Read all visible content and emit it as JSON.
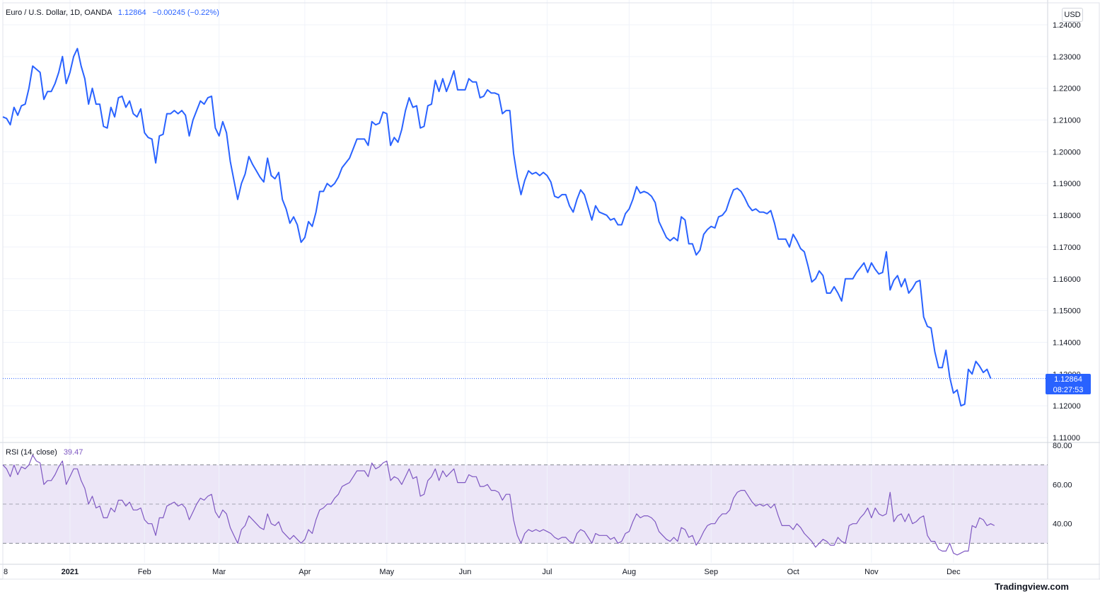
{
  "header": {
    "symbol": "Euro / U.S. Dollar, 1D, OANDA",
    "last": "1.12864",
    "change": "−0.00245 (−0.22%)"
  },
  "currency_button": "USD",
  "price_tag": {
    "price": "1.12864",
    "countdown": "08:27:53"
  },
  "rsi": {
    "label": "RSI (14, close)",
    "value": "39.47"
  },
  "footer": "Tradingview.com",
  "colors": {
    "price_line": "#2962ff",
    "rsi_line": "#7e57c2",
    "rsi_band": "#ece6f7"
  },
  "chart_data": [
    {
      "type": "line",
      "ylim": [
        1.11,
        1.24
      ],
      "y_ticks": [
        "1.24000",
        "1.23000",
        "1.22000",
        "1.21000",
        "1.20000",
        "1.19000",
        "1.18000",
        "1.17000",
        "1.16000",
        "1.15000",
        "1.14000",
        "1.13000",
        "1.12000",
        "1.11000"
      ],
      "x_ticks": [
        {
          "label": "8",
          "bar": 0
        },
        {
          "label": "2021",
          "bar": 18
        },
        {
          "label": "Feb",
          "bar": 38
        },
        {
          "label": "Mar",
          "bar": 58
        },
        {
          "label": "Apr",
          "bar": 81
        },
        {
          "label": "May",
          "bar": 103
        },
        {
          "label": "Jun",
          "bar": 124
        },
        {
          "label": "Jul",
          "bar": 146
        },
        {
          "label": "Aug",
          "bar": 168
        },
        {
          "label": "Sep",
          "bar": 190
        },
        {
          "label": "Oct",
          "bar": 212
        },
        {
          "label": "Nov",
          "bar": 233
        },
        {
          "label": "Dec",
          "bar": 255
        }
      ],
      "values": [
        1.211,
        1.2105,
        1.2085,
        1.214,
        1.2115,
        1.2145,
        1.215,
        1.22,
        1.227,
        1.226,
        1.225,
        1.2165,
        1.219,
        1.219,
        1.2215,
        1.225,
        1.23,
        1.2215,
        1.225,
        1.23,
        1.2325,
        1.227,
        1.223,
        1.215,
        1.22,
        1.215,
        1.215,
        1.208,
        1.2075,
        1.214,
        1.211,
        1.217,
        1.2175,
        1.214,
        1.216,
        1.212,
        1.211,
        1.2135,
        1.206,
        1.2045,
        1.204,
        1.1965,
        1.205,
        1.2055,
        1.212,
        1.212,
        1.213,
        1.212,
        1.213,
        1.2115,
        1.205,
        1.21,
        1.213,
        1.216,
        1.215,
        1.217,
        1.2175,
        1.2075,
        1.205,
        1.2095,
        1.206,
        1.197,
        1.191,
        1.185,
        1.19,
        1.193,
        1.1985,
        1.196,
        1.194,
        1.192,
        1.1905,
        1.198,
        1.1925,
        1.1915,
        1.1935,
        1.185,
        1.182,
        1.1775,
        1.1795,
        1.177,
        1.1715,
        1.173,
        1.178,
        1.1765,
        1.181,
        1.1875,
        1.1875,
        1.19,
        1.189,
        1.19,
        1.192,
        1.195,
        1.1965,
        1.198,
        1.201,
        1.204,
        1.204,
        1.204,
        1.202,
        1.2095,
        1.2085,
        1.209,
        1.2125,
        1.212,
        1.202,
        1.2045,
        1.203,
        1.207,
        1.213,
        1.217,
        1.214,
        1.2145,
        1.2075,
        1.208,
        1.2145,
        1.215,
        1.2225,
        1.219,
        1.223,
        1.219,
        1.222,
        1.2255,
        1.2195,
        1.2195,
        1.2195,
        1.223,
        1.222,
        1.222,
        1.217,
        1.2175,
        1.2195,
        1.2185,
        1.2185,
        1.218,
        1.212,
        1.213,
        1.213,
        1.1995,
        1.192,
        1.1865,
        1.191,
        1.194,
        1.193,
        1.1935,
        1.1925,
        1.1935,
        1.1925,
        1.1905,
        1.186,
        1.1855,
        1.1865,
        1.1865,
        1.183,
        1.181,
        1.185,
        1.188,
        1.1865,
        1.1825,
        1.1785,
        1.183,
        1.181,
        1.1805,
        1.18,
        1.1785,
        1.179,
        1.177,
        1.177,
        1.1805,
        1.182,
        1.185,
        1.189,
        1.187,
        1.1875,
        1.187,
        1.186,
        1.184,
        1.178,
        1.1755,
        1.173,
        1.172,
        1.173,
        1.172,
        1.1795,
        1.1785,
        1.171,
        1.171,
        1.1675,
        1.169,
        1.174,
        1.1755,
        1.1765,
        1.176,
        1.1795,
        1.18,
        1.1815,
        1.185,
        1.188,
        1.1885,
        1.1875,
        1.1855,
        1.183,
        1.1815,
        1.182,
        1.181,
        1.181,
        1.1805,
        1.1815,
        1.1775,
        1.1725,
        1.1725,
        1.1725,
        1.17,
        1.174,
        1.172,
        1.1695,
        1.1685,
        1.164,
        1.159,
        1.16,
        1.1625,
        1.161,
        1.1555,
        1.1555,
        1.1575,
        1.1555,
        1.153,
        1.16,
        1.16,
        1.16,
        1.162,
        1.1635,
        1.165,
        1.162,
        1.165,
        1.163,
        1.1615,
        1.162,
        1.1685,
        1.1565,
        1.1595,
        1.161,
        1.1575,
        1.16,
        1.1555,
        1.157,
        1.159,
        1.1595,
        1.148,
        1.145,
        1.1445,
        1.137,
        1.132,
        1.132,
        1.1375,
        1.129,
        1.124,
        1.125,
        1.12,
        1.1205,
        1.1315,
        1.13,
        1.134,
        1.1325,
        1.1305,
        1.1315,
        1.1286
      ]
    },
    {
      "type": "line",
      "name": "RSI (14, close)",
      "ylim": [
        20,
        80
      ],
      "y_ticks": [
        "80.00",
        "60.00",
        "40.00"
      ],
      "bands": [
        70,
        50,
        30
      ],
      "values": [
        70,
        68,
        64,
        70,
        65,
        69,
        68,
        70,
        75,
        72,
        71,
        60,
        62,
        62,
        65,
        69,
        72,
        60,
        64,
        68,
        68,
        62,
        58,
        50,
        54,
        48,
        49,
        43,
        43,
        48,
        46,
        52,
        52,
        49,
        51,
        47,
        47,
        48,
        42,
        40,
        40,
        34,
        43,
        43,
        49,
        50,
        51,
        49,
        50,
        48,
        42,
        46,
        50,
        53,
        52,
        54,
        55,
        46,
        43,
        47,
        45,
        38,
        34,
        30,
        37,
        39,
        44,
        42,
        40,
        38,
        37,
        45,
        40,
        39,
        41,
        36,
        34,
        32,
        34,
        32,
        30,
        32,
        37,
        35,
        42,
        47,
        48,
        50,
        50,
        53,
        55,
        59,
        60,
        61,
        64,
        67,
        67,
        67,
        64,
        71,
        68,
        69,
        71,
        72,
        62,
        64,
        63,
        60,
        64,
        68,
        63,
        64,
        54,
        55,
        62,
        64,
        68,
        62,
        67,
        64,
        66,
        68,
        61,
        61,
        61,
        65,
        64,
        64,
        59,
        59,
        60,
        57,
        57,
        56,
        52,
        55,
        55,
        42,
        34,
        30,
        35,
        37,
        36,
        37,
        36,
        37,
        36,
        35,
        33,
        32,
        33,
        33,
        31,
        30,
        35,
        37,
        36,
        33,
        30,
        35,
        34,
        34,
        34,
        32,
        33,
        30,
        31,
        35,
        36,
        41,
        45,
        43,
        44,
        44,
        43,
        41,
        36,
        34,
        32,
        31,
        33,
        31,
        38,
        37,
        33,
        34,
        29,
        32,
        36,
        39,
        40,
        40,
        43,
        45,
        45,
        47,
        53,
        56,
        57,
        57,
        54,
        51,
        49,
        50,
        49,
        50,
        48,
        50,
        44,
        39,
        39,
        39,
        37,
        40,
        38,
        35,
        33,
        31,
        28,
        30,
        32,
        31,
        29,
        29,
        33,
        31,
        30,
        39,
        40,
        40,
        43,
        45,
        48,
        43,
        48,
        45,
        44,
        45,
        56,
        41,
        44,
        45,
        41,
        45,
        40,
        41,
        43,
        44,
        34,
        31,
        31,
        27,
        26,
        26,
        30,
        25,
        24,
        25,
        26,
        26,
        39,
        38,
        43,
        42,
        39,
        40,
        39
      ]
    }
  ]
}
